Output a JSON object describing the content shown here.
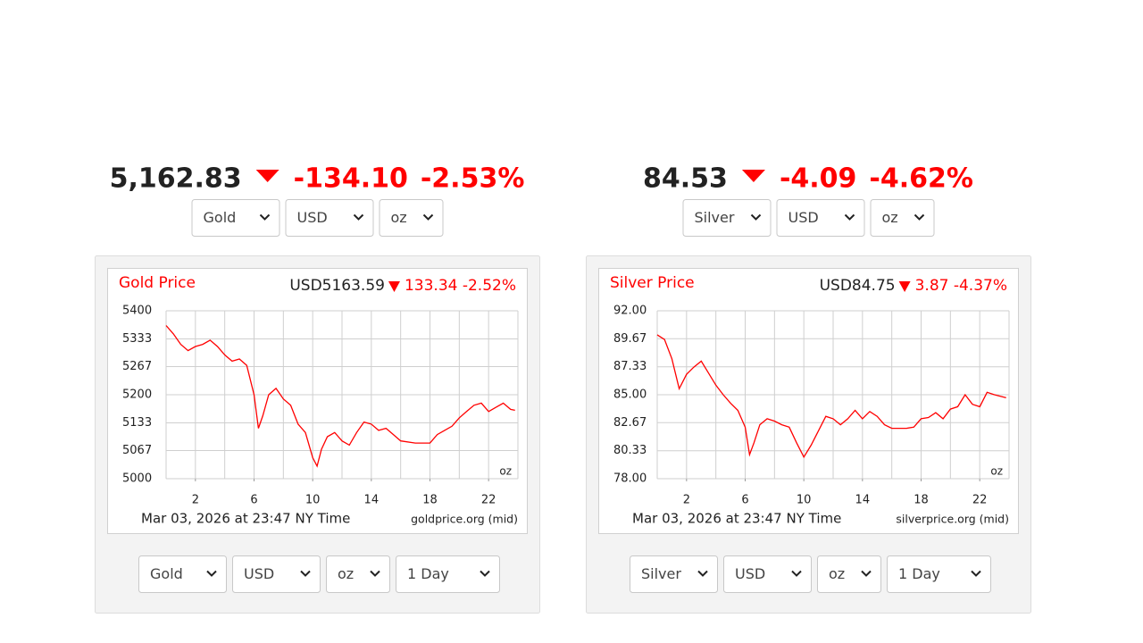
{
  "widgets": [
    {
      "price": "5,162.83",
      "change": "-134.10",
      "change_pct": "-2.53%",
      "selects": [
        "Gold",
        "USD",
        "oz"
      ],
      "controls": [
        "Gold",
        "USD",
        "oz",
        "1 Day"
      ]
    },
    {
      "price": "84.53",
      "change": "-4.09",
      "change_pct": "-4.62%",
      "selects": [
        "Silver",
        "USD",
        "oz"
      ],
      "controls": [
        "Silver",
        "USD",
        "oz",
        "1 Day"
      ]
    }
  ],
  "chart_data": [
    {
      "type": "line",
      "title": "Gold Price",
      "quote": "USD5163.59",
      "quote_change": "133.34 -2.52%",
      "unit": "oz",
      "footer": "Mar 03, 2026 at 23:47 NY Time",
      "source": "goldprice.org (mid)",
      "color": "#ff0000",
      "x": [
        0,
        0.5,
        1,
        1.5,
        2,
        2.5,
        3,
        3.5,
        4,
        4.5,
        5,
        5.5,
        6,
        6.3,
        6.6,
        7,
        7.5,
        8,
        8.5,
        9,
        9.5,
        10,
        10.3,
        10.6,
        11,
        11.5,
        12,
        12.5,
        13,
        13.5,
        14,
        14.5,
        15,
        15.5,
        16,
        17,
        18,
        18.5,
        19,
        19.5,
        20,
        20.5,
        21,
        21.5,
        22,
        22.5,
        23,
        23.5,
        23.8
      ],
      "values": [
        5365,
        5345,
        5320,
        5305,
        5315,
        5320,
        5330,
        5315,
        5295,
        5280,
        5285,
        5270,
        5200,
        5120,
        5150,
        5200,
        5215,
        5190,
        5175,
        5130,
        5110,
        5050,
        5030,
        5070,
        5100,
        5110,
        5090,
        5080,
        5110,
        5135,
        5130,
        5115,
        5120,
        5105,
        5090,
        5085,
        5085,
        5105,
        5115,
        5125,
        5145,
        5160,
        5175,
        5180,
        5160,
        5170,
        5180,
        5165,
        5163
      ],
      "xlim": [
        0,
        24
      ],
      "xticks": [
        2,
        6,
        10,
        14,
        18,
        22
      ],
      "xgrid": [
        0,
        2,
        4,
        6,
        8,
        10,
        12,
        14,
        16,
        18,
        20,
        22,
        24
      ],
      "ylim": [
        5000,
        5400
      ],
      "yticks": [
        5400,
        5333,
        5267,
        5200,
        5133,
        5067,
        5000
      ],
      "grid": true
    },
    {
      "type": "line",
      "title": "Silver Price",
      "quote": "USD84.75",
      "quote_change": "3.87 -4.37%",
      "unit": "oz",
      "footer": "Mar 03, 2026 at 23:47 NY Time",
      "source": "silverprice.org (mid)",
      "color": "#ff0000",
      "x": [
        0,
        0.5,
        1,
        1.5,
        2,
        2.5,
        3,
        3.5,
        4,
        4.5,
        5,
        5.5,
        6,
        6.3,
        6.6,
        7,
        7.5,
        8,
        8.5,
        9,
        9.5,
        10,
        10.5,
        11,
        11.5,
        12,
        12.5,
        13,
        13.5,
        14,
        14.5,
        15,
        15.5,
        16,
        17,
        17.5,
        18,
        18.5,
        19,
        19.5,
        20,
        20.5,
        21,
        21.5,
        22,
        22.5,
        23,
        23.8
      ],
      "values": [
        90.0,
        89.6,
        88.0,
        85.5,
        86.7,
        87.3,
        87.8,
        86.8,
        85.8,
        85.0,
        84.3,
        83.7,
        82.3,
        80.0,
        81.0,
        82.5,
        83.0,
        82.8,
        82.5,
        82.3,
        81.0,
        79.8,
        80.8,
        82.0,
        83.2,
        83.0,
        82.5,
        83.0,
        83.7,
        83.0,
        83.6,
        83.2,
        82.5,
        82.2,
        82.2,
        82.3,
        83.0,
        83.1,
        83.5,
        83.0,
        83.8,
        84.0,
        85.0,
        84.2,
        84.0,
        85.2,
        85.0,
        84.75
      ],
      "xlim": [
        0,
        24
      ],
      "xticks": [
        2,
        6,
        10,
        14,
        18,
        22
      ],
      "xgrid": [
        0,
        2,
        4,
        6,
        8,
        10,
        12,
        14,
        16,
        18,
        20,
        22,
        24
      ],
      "ylim": [
        78,
        92
      ],
      "yticks": [
        {
          "value": 92,
          "label": "92.00"
        },
        {
          "value": 89.67,
          "label": "89.67"
        },
        {
          "value": 87.33,
          "label": "87.33"
        },
        {
          "value": 85,
          "label": "85.00"
        },
        {
          "value": 82.67,
          "label": "82.67"
        },
        {
          "value": 80.33,
          "label": "80.33"
        },
        {
          "value": 78,
          "label": "78.00"
        }
      ],
      "grid": true
    }
  ]
}
